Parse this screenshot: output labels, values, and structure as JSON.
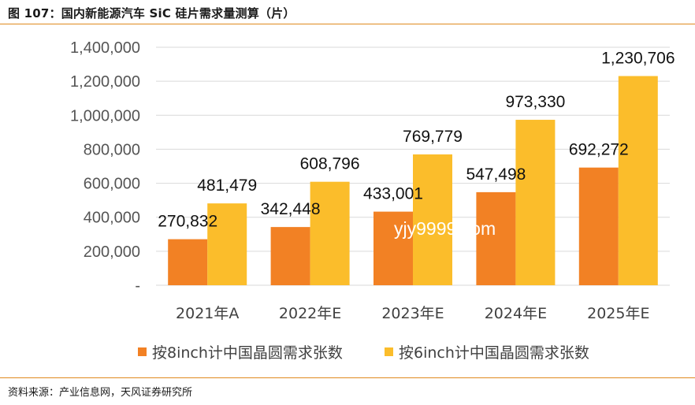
{
  "figure": {
    "title": "图 107：国内新能源汽车 SiC 硅片需求量测算（片）",
    "source": "资料来源：产业信息网，天风证券研究所",
    "watermark": "yjy9999.com"
  },
  "colors": {
    "series_8inch": "#f28124",
    "series_6inch": "#fbbd2b",
    "rule": "#e08a1e",
    "gridline": "#d9d9d9"
  },
  "chart_data": {
    "type": "bar",
    "categories": [
      "2021年A",
      "2022年E",
      "2023年E",
      "2024年E",
      "2025年E"
    ],
    "series": [
      {
        "name": "按8inch计中国晶圆需求张数",
        "values": [
          270832,
          342448,
          433001,
          547498,
          692272
        ],
        "labels": [
          "270,832",
          "342,448",
          "433,001",
          "547,498",
          "692,272"
        ]
      },
      {
        "name": "按6inch计中国晶圆需求张数",
        "values": [
          481479,
          608796,
          769779,
          973330,
          1230706
        ],
        "labels": [
          "481,479",
          "608,796",
          "769,779",
          "973,330",
          "1,230,706"
        ]
      }
    ],
    "yticks": [
      0,
      200000,
      400000,
      600000,
      800000,
      1000000,
      1200000,
      1400000
    ],
    "ytick_labels": [
      "-",
      "200,000",
      "400,000",
      "600,000",
      "800,000",
      "1,000,000",
      "1,200,000",
      "1,400,000"
    ],
    "ylim": [
      0,
      1400000
    ],
    "grid": true,
    "legend_position": "bottom"
  }
}
